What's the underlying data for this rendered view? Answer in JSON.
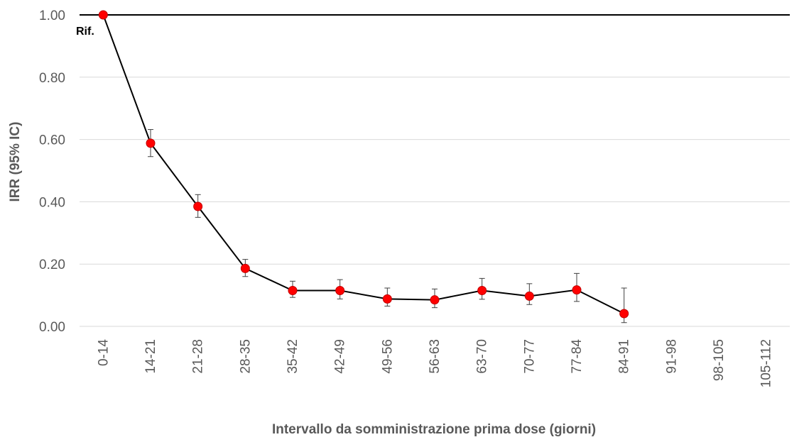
{
  "chart_data": {
    "type": "line",
    "title": "",
    "xlabel": "Intervallo da somministrazione  prima dose (giorni)",
    "ylabel": "IRR (95% IC)",
    "ylim": [
      0,
      1
    ],
    "yticks": [
      "0.00",
      "0.20",
      "0.40",
      "0.60",
      "0.80",
      "1.00"
    ],
    "grid": true,
    "legend": "none",
    "reference_line": {
      "y": 1.0,
      "label": "Rif."
    },
    "categories": [
      "0-14",
      "14-21",
      "21-28",
      "28-35",
      "35-42",
      "42-49",
      "49-56",
      "56-63",
      "63-70",
      "70-77",
      "77-84",
      "84-91",
      "91-98",
      "98-105",
      "105-112"
    ],
    "series": [
      {
        "values": [
          1.0,
          0.588,
          0.385,
          0.186,
          0.115,
          0.115,
          0.088,
          0.085,
          0.115,
          0.097,
          0.117,
          0.041,
          null,
          null,
          null
        ],
        "ci_low": [
          null,
          0.545,
          0.35,
          0.16,
          0.093,
          0.088,
          0.065,
          0.06,
          0.087,
          0.07,
          0.08,
          0.012,
          null,
          null,
          null
        ],
        "ci_high": [
          null,
          0.632,
          0.423,
          0.215,
          0.145,
          0.15,
          0.123,
          0.12,
          0.154,
          0.137,
          0.17,
          0.123,
          null,
          null,
          null
        ],
        "color": "#ff0000",
        "line_color": "#000000"
      }
    ]
  }
}
